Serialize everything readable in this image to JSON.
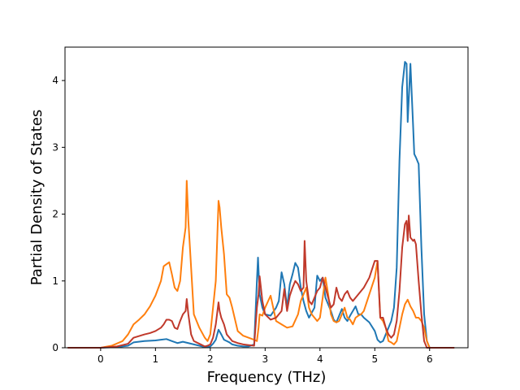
{
  "chart_data": {
    "type": "line",
    "title": "",
    "xlabel": "Frequency (THz)",
    "ylabel": "Partial Density of States",
    "xlim": [
      -0.65,
      6.7
    ],
    "ylim": [
      0,
      4.5
    ],
    "xticks": [
      0,
      1,
      2,
      3,
      4,
      5,
      6
    ],
    "yticks": [
      0,
      1,
      2,
      3,
      4
    ],
    "grid": false,
    "legend": "none",
    "series": [
      {
        "color": "#1f77b4",
        "x": [
          -0.6,
          0,
          0.3,
          0.5,
          0.6,
          0.8,
          1.0,
          1.1,
          1.2,
          1.3,
          1.4,
          1.5,
          1.6,
          1.7,
          1.8,
          1.9,
          1.95,
          2.0,
          2.05,
          2.1,
          2.15,
          2.2,
          2.25,
          2.3,
          2.35,
          2.4,
          2.5,
          2.6,
          2.7,
          2.8,
          2.85,
          2.87,
          2.9,
          2.95,
          3.0,
          3.1,
          3.2,
          3.25,
          3.3,
          3.35,
          3.4,
          3.45,
          3.5,
          3.55,
          3.6,
          3.65,
          3.7,
          3.75,
          3.8,
          3.9,
          3.95,
          4.0,
          4.05,
          4.1,
          4.15,
          4.2,
          4.25,
          4.3,
          4.35,
          4.4,
          4.45,
          4.5,
          4.55,
          4.6,
          4.65,
          4.7,
          4.75,
          4.8,
          4.9,
          5.0,
          5.05,
          5.1,
          5.15,
          5.2,
          5.25,
          5.3,
          5.35,
          5.4,
          5.45,
          5.5,
          5.55,
          5.58,
          5.6,
          5.65,
          5.7,
          5.72,
          5.75,
          5.8,
          5.85,
          5.9,
          5.95,
          6.0,
          6.45
        ],
        "y": [
          0,
          0,
          0.01,
          0.03,
          0.08,
          0.1,
          0.11,
          0.12,
          0.13,
          0.1,
          0.07,
          0.09,
          0.07,
          0.05,
          0.03,
          0.01,
          0.01,
          0.02,
          0.06,
          0.12,
          0.27,
          0.2,
          0.12,
          0.1,
          0.08,
          0.05,
          0.03,
          0.02,
          0.02,
          0.05,
          1.0,
          1.35,
          0.8,
          0.6,
          0.5,
          0.48,
          0.6,
          0.7,
          1.13,
          0.95,
          0.6,
          0.95,
          1.1,
          1.27,
          1.2,
          0.9,
          0.7,
          0.55,
          0.45,
          0.6,
          1.08,
          1.0,
          1.05,
          0.75,
          0.65,
          0.55,
          0.42,
          0.38,
          0.48,
          0.58,
          0.45,
          0.4,
          0.48,
          0.55,
          0.62,
          0.5,
          0.5,
          0.45,
          0.38,
          0.25,
          0.12,
          0.08,
          0.1,
          0.2,
          0.3,
          0.4,
          0.6,
          1.2,
          2.8,
          3.9,
          4.28,
          4.25,
          3.38,
          4.25,
          3.3,
          2.9,
          2.85,
          2.75,
          1.5,
          0.5,
          0.1,
          0,
          0
        ]
      },
      {
        "color": "#ff7f0e",
        "x": [
          -0.6,
          0,
          0.2,
          0.4,
          0.5,
          0.6,
          0.7,
          0.8,
          0.9,
          1.0,
          1.1,
          1.15,
          1.2,
          1.25,
          1.3,
          1.35,
          1.4,
          1.45,
          1.5,
          1.55,
          1.57,
          1.6,
          1.65,
          1.7,
          1.8,
          1.9,
          1.95,
          2.0,
          2.05,
          2.1,
          2.15,
          2.17,
          2.2,
          2.25,
          2.3,
          2.35,
          2.4,
          2.5,
          2.6,
          2.7,
          2.8,
          2.85,
          2.88,
          2.9,
          2.95,
          3.0,
          3.1,
          3.2,
          3.3,
          3.4,
          3.5,
          3.6,
          3.65,
          3.7,
          3.75,
          3.8,
          3.85,
          3.9,
          3.95,
          4.0,
          4.05,
          4.1,
          4.15,
          4.2,
          4.25,
          4.3,
          4.35,
          4.4,
          4.45,
          4.5,
          4.55,
          4.6,
          4.65,
          4.7,
          4.75,
          4.8,
          4.9,
          5.0,
          5.05,
          5.1,
          5.15,
          5.2,
          5.25,
          5.3,
          5.35,
          5.4,
          5.45,
          5.5,
          5.55,
          5.6,
          5.65,
          5.7,
          5.75,
          5.8,
          5.85,
          5.9,
          5.95,
          6.0,
          6.45
        ],
        "y": [
          0,
          0,
          0.03,
          0.1,
          0.2,
          0.35,
          0.42,
          0.5,
          0.62,
          0.78,
          1.0,
          1.22,
          1.25,
          1.28,
          1.1,
          0.9,
          0.85,
          1.0,
          1.5,
          1.8,
          2.5,
          1.9,
          1.2,
          0.5,
          0.3,
          0.15,
          0.1,
          0.2,
          0.6,
          1.0,
          2.2,
          2.1,
          1.8,
          1.4,
          0.8,
          0.75,
          0.6,
          0.25,
          0.18,
          0.15,
          0.12,
          0.1,
          0.3,
          0.5,
          0.48,
          0.6,
          0.78,
          0.4,
          0.35,
          0.3,
          0.32,
          0.5,
          0.7,
          0.8,
          0.9,
          0.6,
          0.5,
          0.45,
          0.4,
          0.45,
          0.75,
          1.05,
          0.8,
          0.5,
          0.4,
          0.38,
          0.4,
          0.5,
          0.6,
          0.45,
          0.42,
          0.35,
          0.45,
          0.48,
          0.5,
          0.55,
          0.8,
          1.05,
          1.3,
          0.45,
          0.4,
          0.3,
          0.1,
          0.08,
          0.05,
          0.1,
          0.3,
          0.5,
          0.65,
          0.72,
          0.62,
          0.55,
          0.45,
          0.45,
          0.4,
          0.3,
          0.1,
          0,
          0
        ]
      },
      {
        "color": "#c0392b",
        "x": [
          -0.6,
          0,
          0.3,
          0.5,
          0.6,
          0.8,
          0.9,
          1.0,
          1.1,
          1.15,
          1.2,
          1.25,
          1.3,
          1.35,
          1.4,
          1.45,
          1.5,
          1.55,
          1.57,
          1.6,
          1.65,
          1.7,
          1.8,
          1.9,
          1.95,
          2.0,
          2.05,
          2.1,
          2.15,
          2.17,
          2.2,
          2.25,
          2.3,
          2.35,
          2.4,
          2.5,
          2.6,
          2.7,
          2.8,
          2.85,
          2.88,
          2.9,
          2.95,
          3.0,
          3.1,
          3.2,
          3.3,
          3.35,
          3.4,
          3.45,
          3.5,
          3.55,
          3.6,
          3.65,
          3.7,
          3.72,
          3.75,
          3.8,
          3.85,
          3.9,
          3.95,
          4.0,
          4.05,
          4.1,
          4.15,
          4.2,
          4.25,
          4.3,
          4.35,
          4.4,
          4.45,
          4.5,
          4.55,
          4.6,
          4.65,
          4.7,
          4.75,
          4.8,
          4.9,
          5.0,
          5.05,
          5.1,
          5.15,
          5.2,
          5.25,
          5.3,
          5.35,
          5.4,
          5.45,
          5.5,
          5.55,
          5.58,
          5.6,
          5.62,
          5.65,
          5.7,
          5.72,
          5.75,
          5.8,
          5.85,
          5.9,
          5.95,
          6.0,
          6.45
        ],
        "y": [
          0,
          0,
          0.02,
          0.06,
          0.15,
          0.2,
          0.22,
          0.25,
          0.3,
          0.35,
          0.42,
          0.42,
          0.4,
          0.3,
          0.28,
          0.4,
          0.5,
          0.55,
          0.73,
          0.5,
          0.2,
          0.1,
          0.06,
          0.02,
          0.03,
          0.05,
          0.15,
          0.35,
          0.68,
          0.55,
          0.45,
          0.35,
          0.2,
          0.15,
          0.1,
          0.07,
          0.05,
          0.04,
          0.03,
          0.6,
          0.8,
          1.07,
          0.7,
          0.5,
          0.42,
          0.45,
          0.55,
          0.88,
          0.55,
          0.78,
          0.9,
          1.0,
          0.95,
          0.85,
          0.9,
          1.6,
          1.0,
          0.7,
          0.65,
          0.75,
          0.85,
          0.9,
          1.05,
          0.9,
          0.75,
          0.6,
          0.65,
          0.9,
          0.75,
          0.7,
          0.8,
          0.85,
          0.75,
          0.7,
          0.75,
          0.8,
          0.85,
          0.9,
          1.05,
          1.3,
          1.3,
          0.45,
          0.45,
          0.3,
          0.2,
          0.15,
          0.2,
          0.4,
          0.85,
          1.5,
          1.85,
          1.9,
          1.6,
          1.98,
          1.65,
          1.6,
          1.62,
          1.55,
          1.0,
          0.5,
          0.1,
          0,
          0,
          0
        ]
      }
    ]
  }
}
